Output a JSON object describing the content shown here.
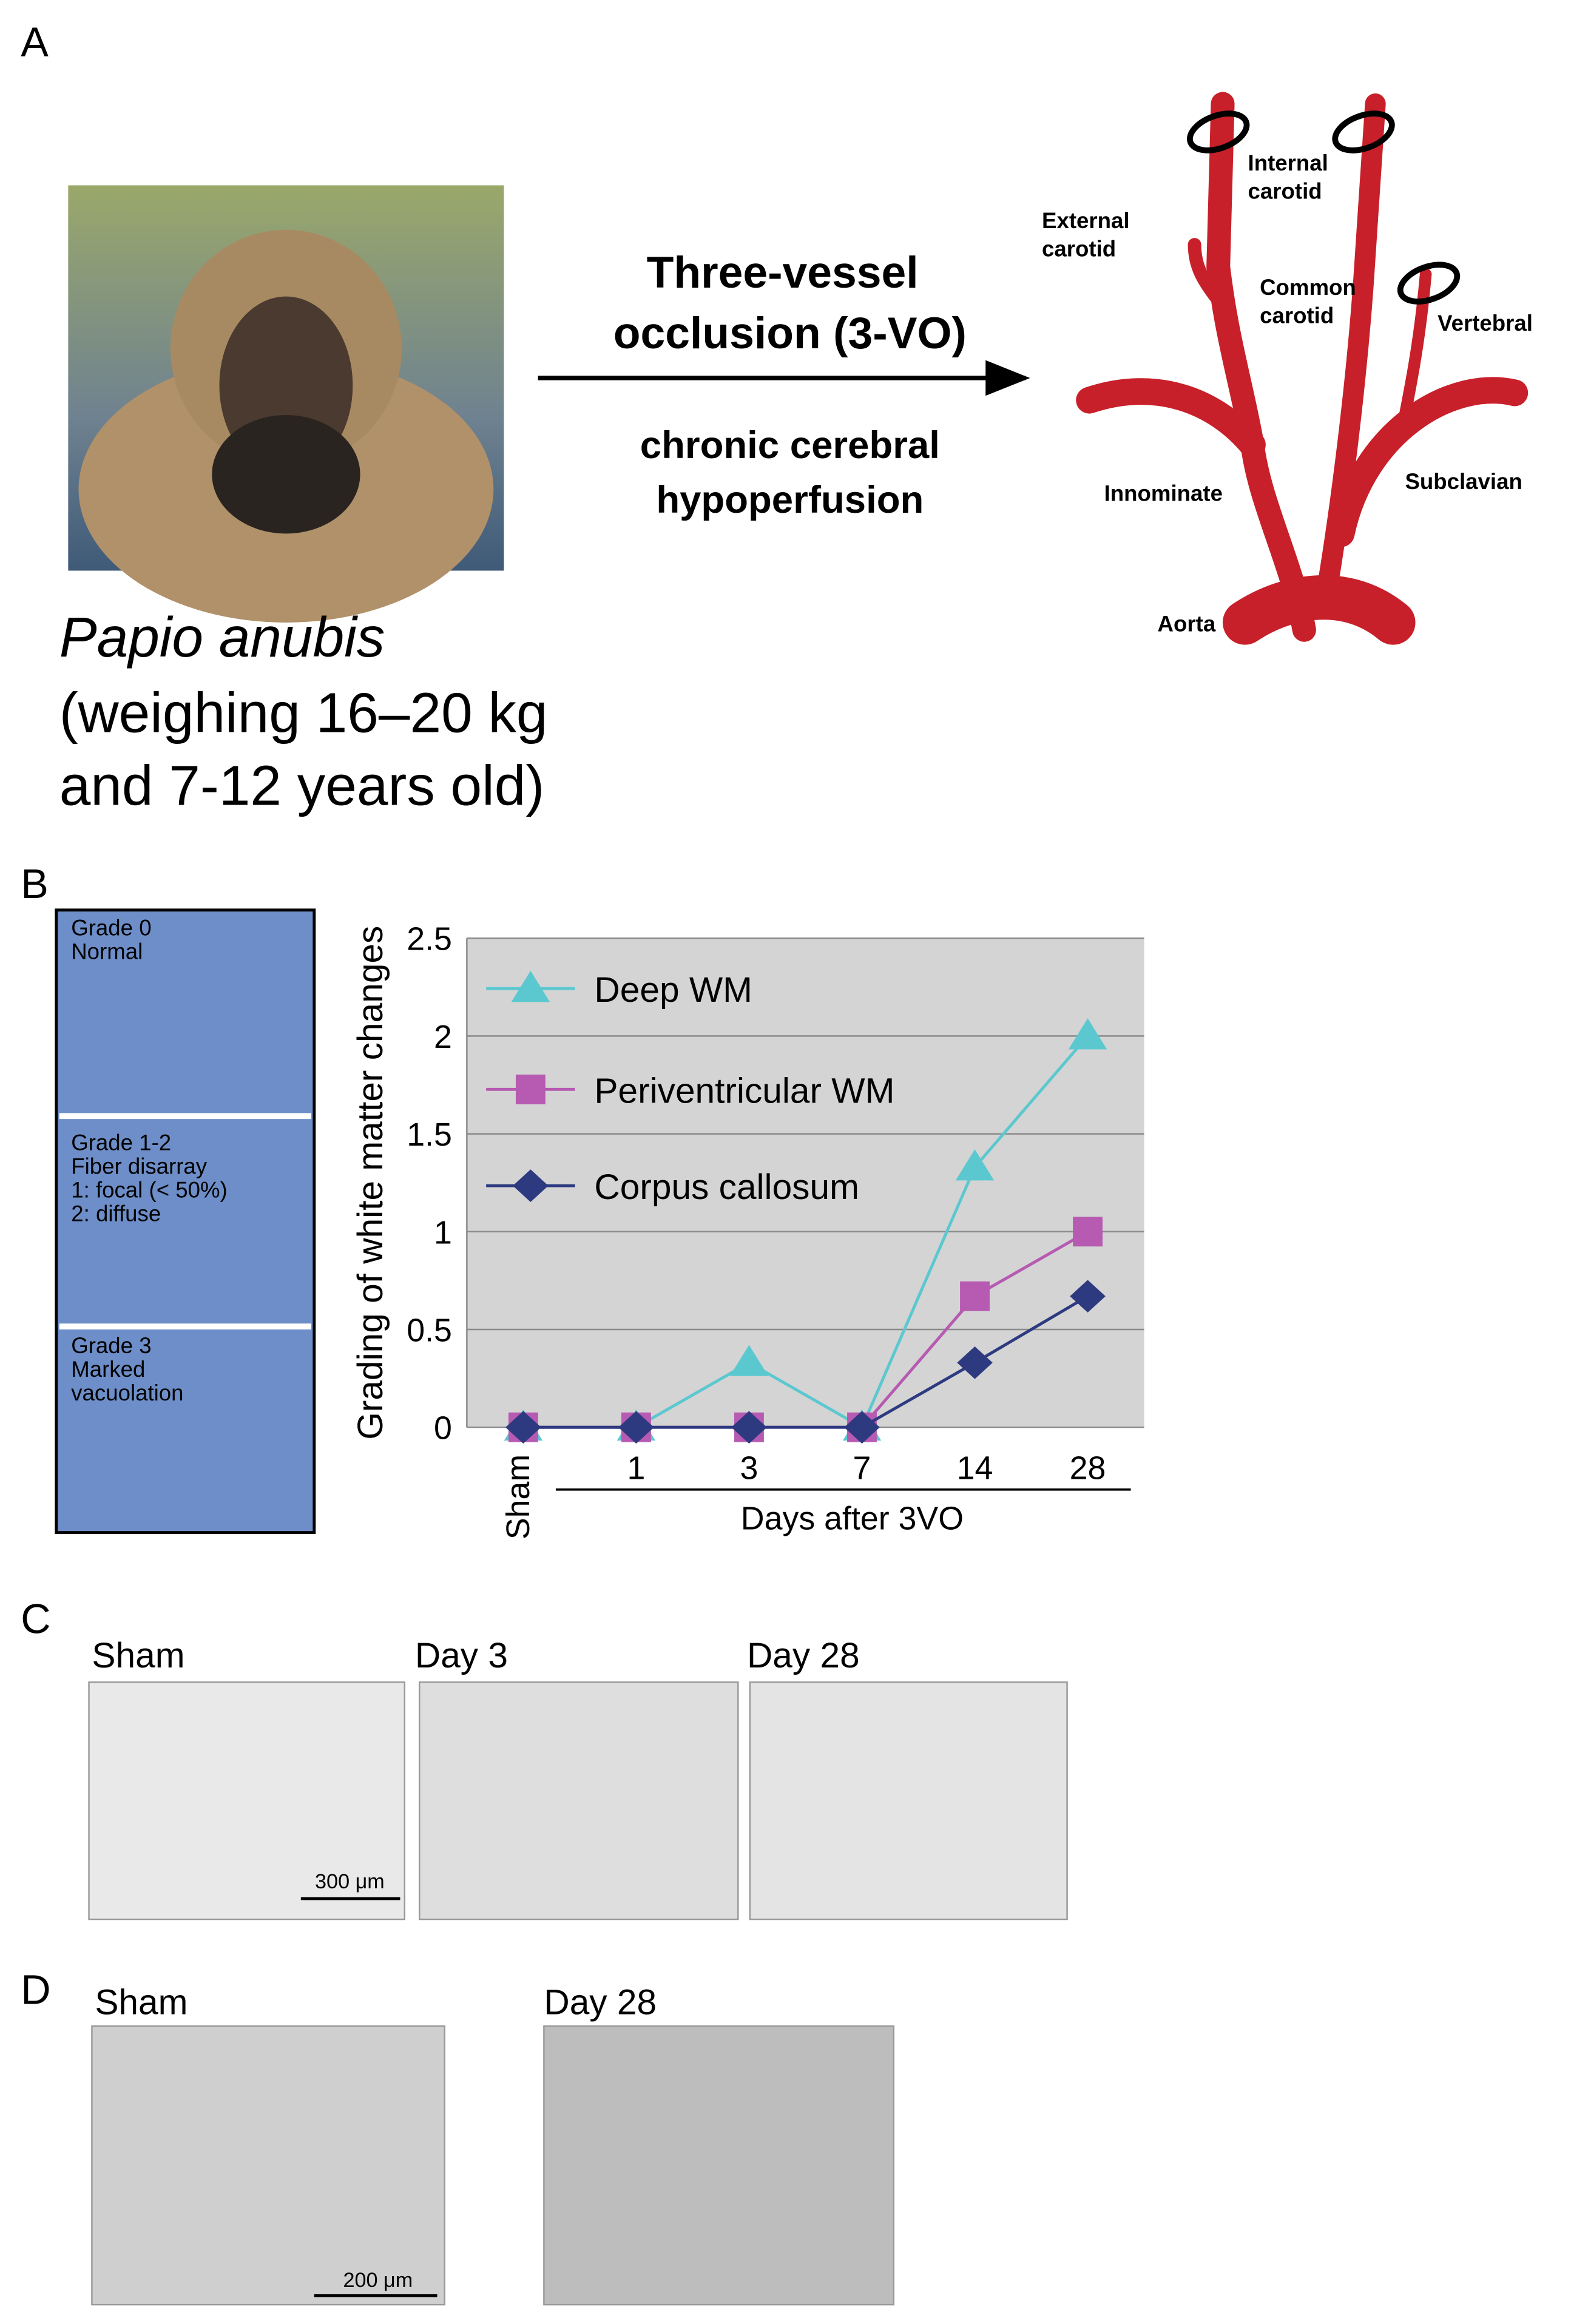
{
  "panel_a": {
    "letter": "A",
    "arrow_top": [
      "Three-vessel",
      "occlusion (3-VO)"
    ],
    "arrow_bottom": [
      "chronic cerebral",
      "hypoperfusion"
    ],
    "species": "Papio anubis",
    "species_note": [
      "(weighing 16–20 kg",
      "and 7-12 years old)"
    ],
    "vessels": [
      [
        "Internal",
        "carotid"
      ],
      [
        "External",
        "carotid"
      ],
      [
        "Common",
        "carotid"
      ],
      [
        "Vertebral"
      ],
      [
        "Innominate"
      ],
      [
        "Subclavian"
      ],
      [
        "Aorta"
      ]
    ]
  },
  "panel_b": {
    "letter": "B",
    "grades": [
      [
        "Grade 0",
        "Normal"
      ],
      [
        "Grade 1-2",
        "Fiber disarray",
        "1: focal (< 50%)",
        "2: diffuse"
      ],
      [
        "Grade 3",
        "Marked",
        "vacuolation"
      ]
    ]
  },
  "chart_data": {
    "type": "line",
    "y_label": "Grading of white matter changes",
    "x_label": "Days after 3VO",
    "categories": [
      "Sham",
      "1",
      "3",
      "7",
      "14",
      "28"
    ],
    "series": [
      {
        "name": "Deep WM",
        "color": "#5BC8D0",
        "marker": "triangle",
        "values": [
          0,
          0,
          0.33,
          0,
          1.33,
          2
        ]
      },
      {
        "name": "Periventricular WM",
        "color": "#B65AB2",
        "marker": "square",
        "values": [
          0,
          0,
          0,
          0,
          0.67,
          1
        ]
      },
      {
        "name": "Corpus callosum",
        "color": "#2E3A80",
        "marker": "diamond",
        "values": [
          0,
          0,
          0,
          0,
          0.33,
          0.67
        ]
      }
    ],
    "ylim": [
      0,
      2.5
    ],
    "yticks": [
      0,
      0.5,
      1,
      1.5,
      2,
      2.5
    ],
    "grid": true,
    "legend": "upper-left"
  },
  "panel_c": {
    "letter": "C",
    "labels": [
      "Sham",
      "Day 3",
      "Day 28"
    ],
    "scale_bar": "300 μm"
  },
  "panel_d": {
    "letter": "D",
    "labels": [
      "Sham",
      "Day 28"
    ],
    "scale_bar": "200 μm"
  }
}
